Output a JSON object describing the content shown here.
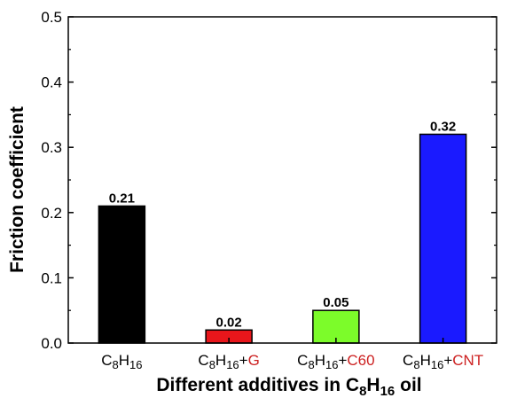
{
  "chart_data": {
    "type": "bar",
    "categories": [
      {
        "base": "C",
        "sub1": "8",
        "mid": "H",
        "sub2": "16",
        "plus": "",
        "additive": ""
      },
      {
        "base": "C",
        "sub1": "8",
        "mid": "H",
        "sub2": "16",
        "plus": "+",
        "additive": "G"
      },
      {
        "base": "C",
        "sub1": "8",
        "mid": "H",
        "sub2": "16",
        "plus": "+",
        "additive": "C60"
      },
      {
        "base": "C",
        "sub1": "8",
        "mid": "H",
        "sub2": "16",
        "plus": "+",
        "additive": "CNT"
      }
    ],
    "values": [
      0.21,
      0.02,
      0.05,
      0.32
    ],
    "value_labels": [
      "0.21",
      "0.02",
      "0.05",
      "0.32"
    ],
    "bar_colors": [
      "#000000",
      "#e8161b",
      "#7cfc2a",
      "#1a1aff"
    ],
    "additive_color": "#cc1f1f",
    "ylabel": "Friction coefficient",
    "xlabel": {
      "prefix": "Different additives in C",
      "sub1": "8",
      "mid": "H",
      "sub2": "16",
      "suffix": " oil"
    },
    "ylim": [
      0,
      0.5
    ],
    "yticks": [
      "0.0",
      "0.1",
      "0.2",
      "0.3",
      "0.4",
      "0.5"
    ],
    "grid": false,
    "legend": "none"
  }
}
